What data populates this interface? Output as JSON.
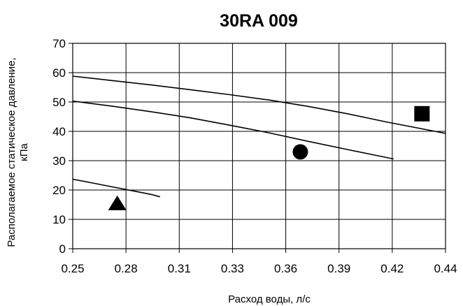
{
  "chart_data": {
    "type": "line",
    "title": "30RA 009",
    "xlabel": "Расход воды, л/с",
    "ylabel_line1": "Располагаемое статическое давление,",
    "ylabel_line2": "кПа",
    "xlim": [
      0.25,
      0.44
    ],
    "ylim": [
      0,
      70
    ],
    "x_ticks": [
      0.25,
      0.28,
      0.31,
      0.33,
      0.36,
      0.39,
      0.42,
      0.44
    ],
    "x_tick_labels": [
      "0.25",
      "0.28",
      "0.31",
      "0.33",
      "0.36",
      "0.39",
      "0.42",
      "0.44"
    ],
    "y_ticks": [
      0,
      10,
      20,
      30,
      40,
      50,
      60,
      70
    ],
    "y_tick_labels": [
      "0",
      "10",
      "20",
      "30",
      "40",
      "50",
      "60",
      "70"
    ],
    "grid": true,
    "series": [
      {
        "marker": "square",
        "marker_point": [
          0.428,
          46
        ],
        "x": [
          0.25,
          0.27,
          0.29,
          0.31,
          0.33,
          0.35,
          0.37,
          0.39,
          0.41,
          0.44
        ],
        "y": [
          58.8,
          57.3,
          55.8,
          54.2,
          52.5,
          50.7,
          48.5,
          46.0,
          43.2,
          39.3
        ]
      },
      {
        "marker": "circle",
        "marker_point": [
          0.366,
          33
        ],
        "x": [
          0.25,
          0.27,
          0.29,
          0.31,
          0.33,
          0.35,
          0.37,
          0.39,
          0.4135
        ],
        "y": [
          50.3,
          48.6,
          46.7,
          44.6,
          42.1,
          39.5,
          36.6,
          33.8,
          30.6
        ]
      },
      {
        "marker": "triangle",
        "marker_point": [
          0.2727,
          15.5
        ],
        "x": [
          0.25,
          0.26,
          0.27,
          0.28,
          0.29,
          0.2945
        ],
        "y": [
          23.7,
          22.4,
          21.1,
          19.8,
          18.5,
          17.7
        ]
      }
    ]
  }
}
